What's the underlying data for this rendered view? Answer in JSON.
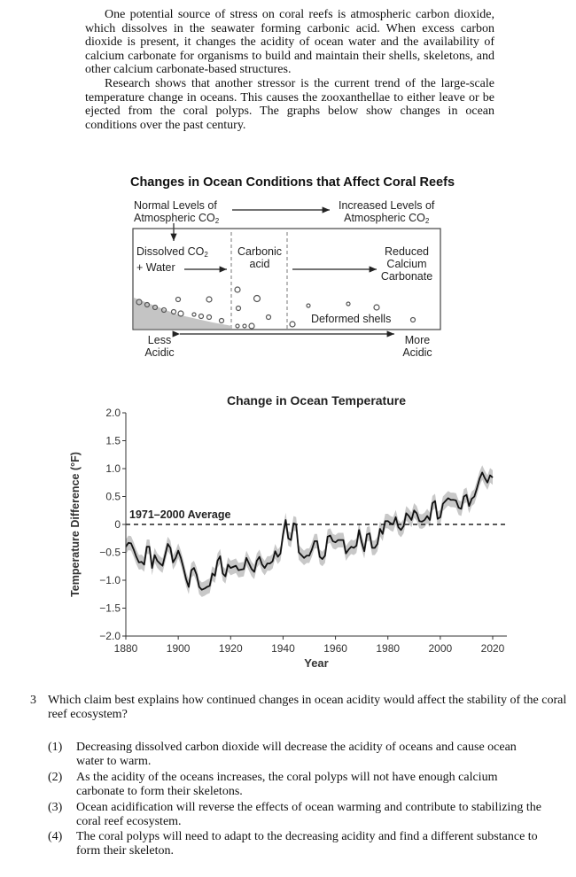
{
  "passage": {
    "paragraph1": "One potential source of stress on coral reefs is atmospheric carbon dioxide, which dissolves in the seawater forming carbonic acid. When excess carbon dioxide is present, it changes the acidity of ocean water and the availability of calcium carbonate for organisms to build and maintain their shells, skeletons, and other calcium carbonate-based structures.",
    "paragraph2": "Research shows that another stressor is the current trend of the large-scale temperature change in oceans. This causes the zooxanthellae to either leave or be ejected from the coral polyps. The graphs below show changes in ocean conditions over the past century."
  },
  "diagram": {
    "title": "Changes in Ocean Conditions that Affect Coral Reefs",
    "normal_levels": "Normal Levels of",
    "atmospheric_co": "Atmospheric CO",
    "sub2": "2",
    "increased_levels": "Increased Levels of",
    "dissolved_co": "Dissolved CO",
    "plus_water": "+ Water",
    "carbonic": "Carbonic",
    "acid": "acid",
    "reduced": "Reduced",
    "calcium": "Calcium",
    "carbonate": "Carbonate",
    "deformed_shells": "Deformed shells",
    "less": "Less",
    "more": "More",
    "acidic": "Acidic"
  },
  "chart_data": {
    "type": "line",
    "title": "Change in Ocean Temperature",
    "xlabel": "Year",
    "ylabel": "Temperature Difference (°F)",
    "xlim": [
      1880,
      2020
    ],
    "ylim": [
      -2.0,
      2.0
    ],
    "x_ticks": [
      "1880",
      "1900",
      "1920",
      "1940",
      "1960",
      "1980",
      "2000",
      "2020"
    ],
    "y_ticks": [
      "2.0",
      "1.5",
      "1.0",
      "0.5",
      "0",
      "−0.5",
      "−1.0",
      "−1.5",
      "−2.0"
    ],
    "reference_line": {
      "label": "1971–2000 Average",
      "value": 0
    },
    "grid": false,
    "line_color": "#111111",
    "band_color": "#c8c8c8",
    "x_start": 1880,
    "values": [
      -0.4,
      -0.33,
      -0.34,
      -0.45,
      -0.58,
      -0.68,
      -0.67,
      -0.72,
      -0.4,
      -0.4,
      -0.78,
      -0.55,
      -0.65,
      -0.7,
      -0.74,
      -0.55,
      -0.35,
      -0.42,
      -0.68,
      -0.6,
      -0.47,
      -0.6,
      -0.78,
      -0.98,
      -1.12,
      -0.82,
      -0.78,
      -0.9,
      -1.12,
      -1.17,
      -1.15,
      -1.12,
      -1.1,
      -0.88,
      -0.92,
      -0.65,
      -0.57,
      -0.88,
      -0.93,
      -0.72,
      -0.78,
      -0.76,
      -0.74,
      -0.82,
      -0.81,
      -0.8,
      -0.6,
      -0.7,
      -0.8,
      -0.85,
      -0.65,
      -0.58,
      -0.72,
      -0.78,
      -0.7,
      -0.7,
      -0.66,
      -0.48,
      -0.58,
      -0.52,
      -0.18,
      0.08,
      -0.25,
      -0.28,
      0.02,
      0.0,
      -0.5,
      -0.55,
      -0.6,
      -0.56,
      -0.56,
      -0.45,
      -0.3,
      -0.3,
      -0.58,
      -0.62,
      -0.56,
      -0.22,
      -0.2,
      -0.3,
      -0.32,
      -0.28,
      -0.28,
      -0.28,
      -0.52,
      -0.45,
      -0.4,
      -0.42,
      -0.38,
      -0.1,
      -0.32,
      -0.48,
      -0.18,
      -0.16,
      -0.42,
      -0.42,
      -0.35,
      -0.08,
      -0.17,
      0.06,
      0.06,
      0.02,
      0.0,
      0.13,
      -0.05,
      -0.1,
      -0.03,
      0.2,
      0.15,
      0.08,
      0.25,
      0.2,
      0.06,
      0.05,
      0.08,
      0.15,
      0.08,
      0.38,
      0.42,
      0.1,
      0.13,
      0.37,
      0.42,
      0.47,
      0.44,
      0.44,
      0.43,
      0.3,
      0.28,
      0.5,
      0.53,
      0.33,
      0.46,
      0.5,
      0.65,
      0.82,
      0.93,
      0.83,
      0.75,
      0.88,
      0.84
    ]
  },
  "question": {
    "number": "3",
    "stem": "Which claim best explains how continued changes in ocean acidity would affect the stability of the coral reef ecosystem?",
    "options": [
      {
        "num": "(1)",
        "text": "Decreasing dissolved carbon dioxide will decrease the acidity of oceans and cause ocean water to warm."
      },
      {
        "num": "(2)",
        "text": "As the acidity of the oceans increases, the coral polyps will not have enough calcium carbonate to form their skeletons."
      },
      {
        "num": "(3)",
        "text": "Ocean acidification will reverse the effects of ocean warming and contribute to stabilizing the coral reef ecosystem."
      },
      {
        "num": "(4)",
        "text": "The coral polyps will need to adapt to the decreasing acidity and find a different substance to form their skeleton."
      }
    ]
  }
}
